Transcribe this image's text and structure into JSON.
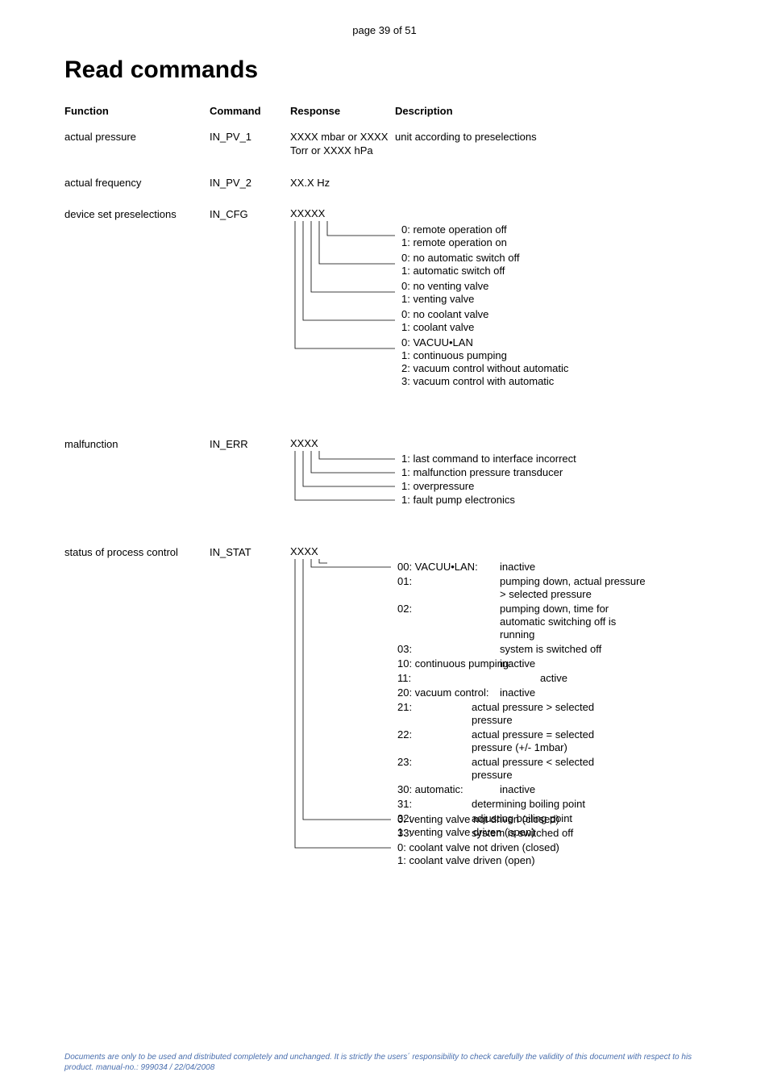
{
  "page_header": "page 39 of 51",
  "title": "Read commands",
  "columns": {
    "c1": "Function",
    "c2": "Command",
    "c3": "Response",
    "c4": "Description"
  },
  "rows": {
    "actual_pressure": {
      "function": "actual pressure",
      "command": "IN_PV_1",
      "response": "XXXX mbar or XXXX Torr or XXXX hPa",
      "description": "unit according to preselections"
    },
    "actual_frequency": {
      "function": "actual frequency",
      "command": "IN_PV_2",
      "response": "XX.X Hz",
      "description": ""
    },
    "device_set": {
      "function": "device set preselections",
      "command": "IN_CFG",
      "response_root": "XXXXX",
      "branches": [
        "0: remote operation off\n1: remote operation on",
        "0: no automatic switch off\n1: automatic switch off",
        "0: no venting valve\n1: venting valve",
        "0: no coolant valve\n1: coolant valve",
        "0: VACUU•LAN\n1: continuous pumping\n2: vacuum control without automatic\n3: vacuum control with automatic"
      ]
    },
    "malfunction": {
      "function": "malfunction",
      "command": "IN_ERR",
      "response_root": "XXXX",
      "branches": [
        "1: last command to interface incorrect",
        "1: malfunction pressure transducer",
        "1: overpressure",
        "1: fault pump electronics"
      ]
    },
    "status": {
      "function": "status of process control",
      "command": "IN_STAT",
      "response_root": "XXXX",
      "branch0": {
        "lines": [
          {
            "l": "00: VACUU•LAN:",
            "r": "inactive"
          },
          {
            "l": "01:",
            "r": "pumping down, actual pressure > selected pressure"
          },
          {
            "l": "02:",
            "r": "pumping down, time for automatic switching off is running"
          },
          {
            "l": "03:",
            "r": "system is switched off"
          },
          {
            "l": "10: continuous pumping:",
            "r": "inactive"
          },
          {
            "l": "11:",
            "r": "active",
            "rindent": true
          },
          {
            "l": "20: vacuum control:",
            "r": "inactive"
          },
          {
            "l": "21:",
            "r": "actual pressure > selected pressure",
            "rmid": true
          },
          {
            "l": "22:",
            "r": "actual pressure = selected pressure (+/- 1mbar)",
            "rmid": true
          },
          {
            "l": "23:",
            "r": "actual pressure < selected pressure",
            "rmid": true
          },
          {
            "l": "30: automatic:",
            "r": "inactive"
          },
          {
            "l": "31:",
            "r": "determining boiling point",
            "rmid": true
          },
          {
            "l": "32:",
            "r": "adjusting boiling point",
            "rmid": true
          },
          {
            "l": "33:",
            "r": "system is switched off",
            "rmid": true
          }
        ]
      },
      "branch1": "0: venting valve not driven (closed)\n1: venting valve driven (open)",
      "branch2": "0: coolant valve not driven (closed)\n1: coolant valve driven (open)"
    }
  },
  "footer": "Documents are only to be used and distributed completely and unchanged. It is strictly the users´ responsibility to check carefully the validity of this document with respect to his product. manual-no.: 999034 / 22/04/2008",
  "style": {
    "line_color": "#000000",
    "line_width": 0.8,
    "footer_color": "#4a6fae",
    "font_size_body": 13,
    "font_size_title": 30,
    "font_size_footer": 10
  }
}
